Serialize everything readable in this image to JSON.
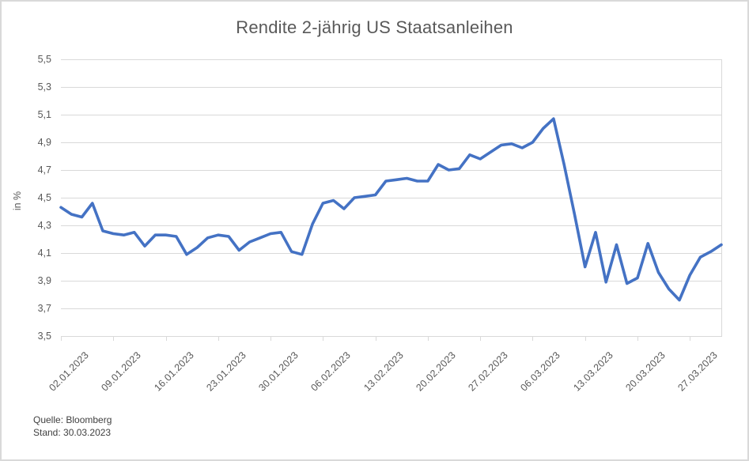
{
  "window": {
    "background": "#ffffff",
    "border_color": "#d9d9d9"
  },
  "chart_data": {
    "type": "line",
    "title": "Rendite 2-jährig US Staatsanleihen",
    "xlabel": "",
    "ylabel": "in %",
    "ylim": [
      3.5,
      5.5
    ],
    "y_step": 0.2,
    "grid": "horizontal",
    "legend": "none",
    "line_color": "#4472C4",
    "grid_color": "#d9d9d9",
    "axis_text_color": "#595959",
    "source_text_color": "#404040",
    "y_tick_labels": [
      "5,5",
      "5,3",
      "5,1",
      "4,9",
      "4,7",
      "4,5",
      "4,3",
      "4,1",
      "3,9",
      "3,7",
      "3,5"
    ],
    "x_tick_labels": [
      "02.01.2023",
      "09.01.2023",
      "16.01.2023",
      "23.01.2023",
      "30.01.2023",
      "06.02.2023",
      "13.02.2023",
      "20.02.2023",
      "27.02.2023",
      "06.03.2023",
      "13.03.2023",
      "20.03.2023",
      "27.03.2023"
    ],
    "x_tick_every": 5,
    "series": [
      {
        "name": "Rendite 2-jährig US Staatsanleihen",
        "x": [
          "02.01.2023",
          "03.01.2023",
          "04.01.2023",
          "05.01.2023",
          "06.01.2023",
          "09.01.2023",
          "10.01.2023",
          "11.01.2023",
          "12.01.2023",
          "13.01.2023",
          "16.01.2023",
          "17.01.2023",
          "18.01.2023",
          "19.01.2023",
          "20.01.2023",
          "23.01.2023",
          "24.01.2023",
          "25.01.2023",
          "26.01.2023",
          "27.01.2023",
          "30.01.2023",
          "31.01.2023",
          "01.02.2023",
          "02.02.2023",
          "03.02.2023",
          "06.02.2023",
          "07.02.2023",
          "08.02.2023",
          "09.02.2023",
          "10.02.2023",
          "13.02.2023",
          "14.02.2023",
          "15.02.2023",
          "16.02.2023",
          "17.02.2023",
          "20.02.2023",
          "21.02.2023",
          "22.02.2023",
          "23.02.2023",
          "24.02.2023",
          "27.02.2023",
          "28.02.2023",
          "01.03.2023",
          "02.03.2023",
          "03.03.2023",
          "06.03.2023",
          "07.03.2023",
          "08.03.2023",
          "09.03.2023",
          "10.03.2023",
          "13.03.2023",
          "14.03.2023",
          "15.03.2023",
          "16.03.2023",
          "17.03.2023",
          "20.03.2023",
          "21.03.2023",
          "22.03.2023",
          "23.03.2023",
          "24.03.2023",
          "27.03.2023",
          "28.03.2023",
          "29.03.2023",
          "30.03.2023"
        ],
        "values": [
          4.43,
          4.38,
          4.36,
          4.46,
          4.26,
          4.24,
          4.23,
          4.25,
          4.15,
          4.23,
          4.23,
          4.22,
          4.09,
          4.14,
          4.21,
          4.23,
          4.22,
          4.12,
          4.18,
          4.21,
          4.24,
          4.25,
          4.11,
          4.09,
          4.31,
          4.46,
          4.48,
          4.42,
          4.5,
          4.51,
          4.52,
          4.62,
          4.63,
          4.64,
          4.62,
          4.62,
          4.74,
          4.7,
          4.71,
          4.81,
          4.78,
          4.83,
          4.88,
          4.89,
          4.86,
          4.9,
          5.0,
          5.07,
          4.74,
          4.38,
          4.0,
          4.25,
          3.89,
          4.16,
          3.88,
          3.92,
          4.17,
          3.96,
          3.84,
          3.76,
          3.94,
          4.07,
          4.11,
          4.16
        ]
      }
    ],
    "source_line1": "Quelle: Bloomberg",
    "source_line2": "Stand: 30.03.2023"
  }
}
